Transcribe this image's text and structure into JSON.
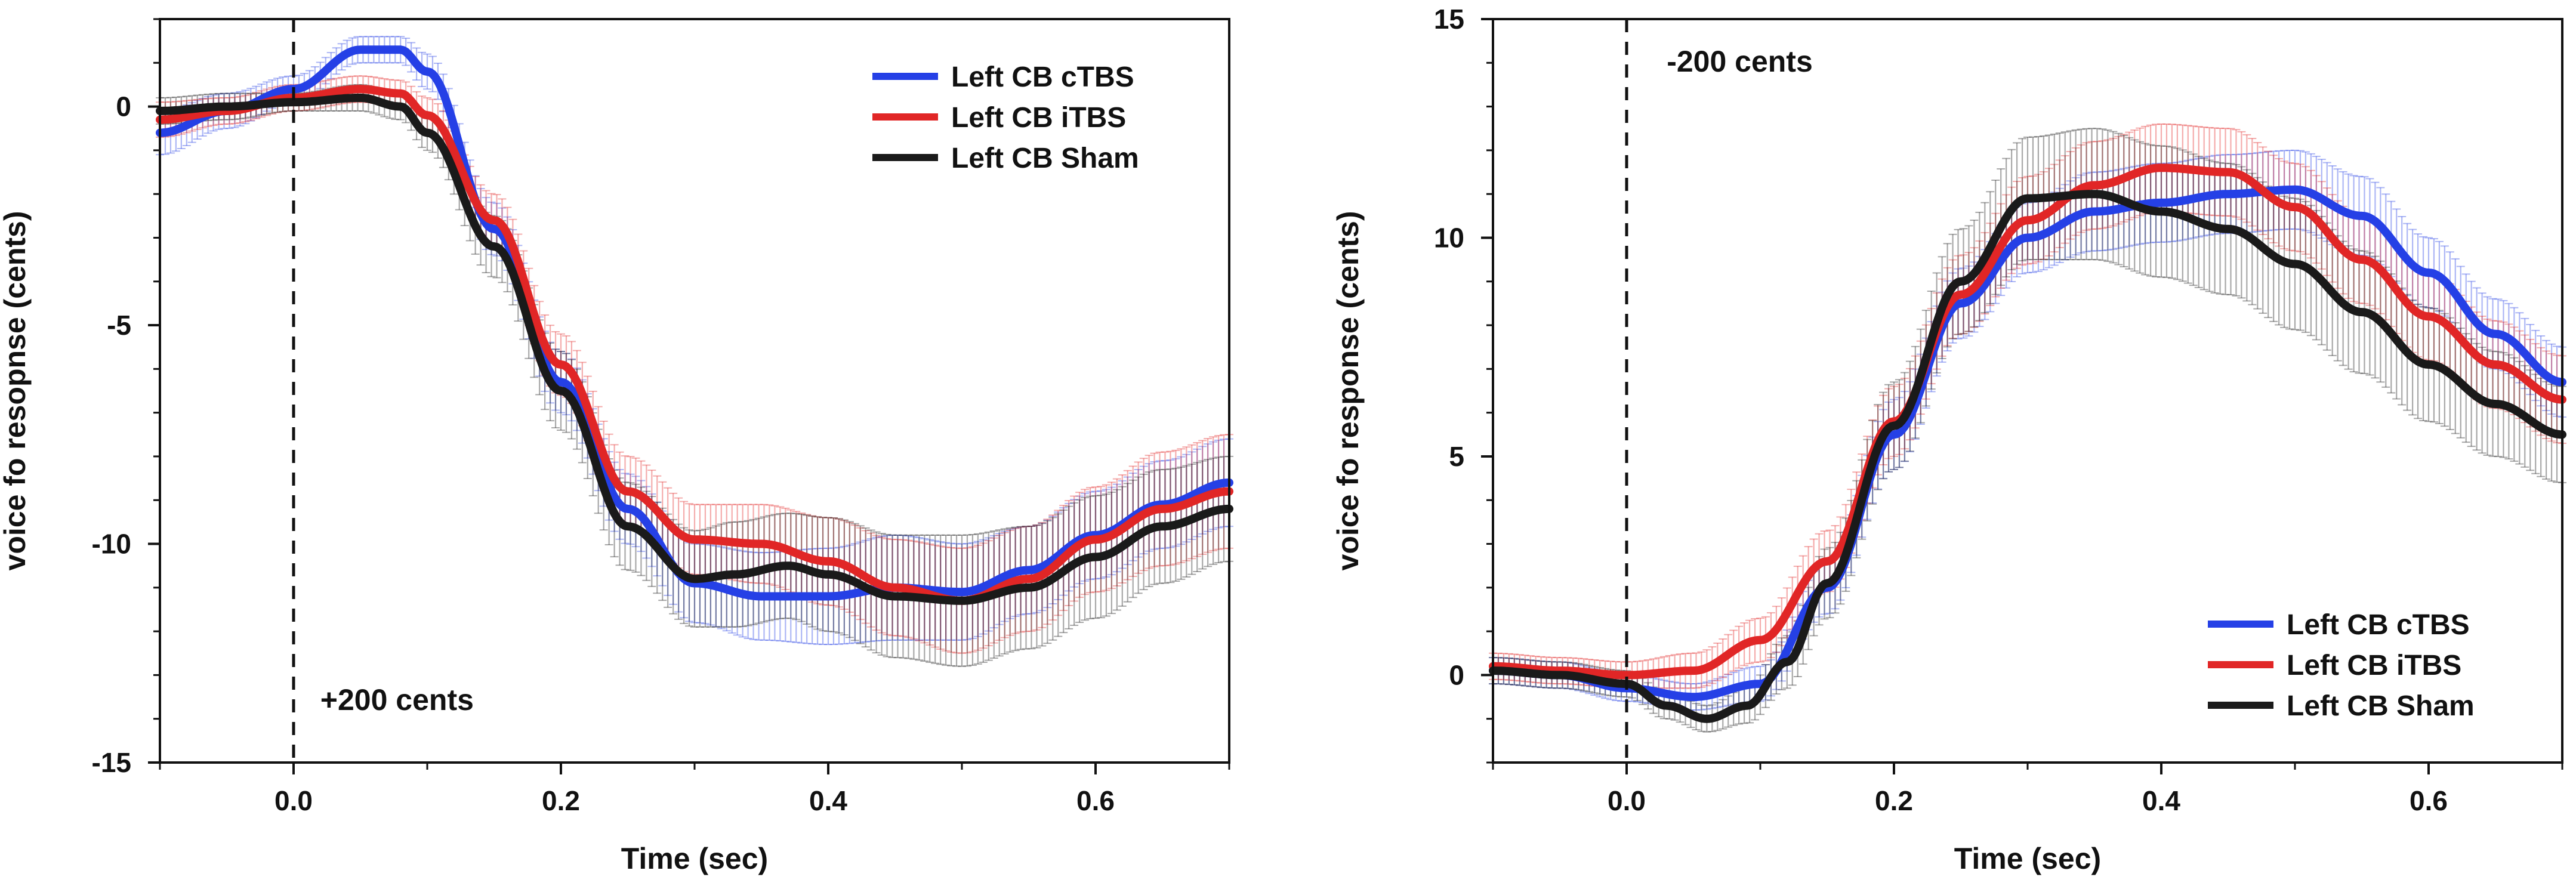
{
  "chart_data": [
    {
      "type": "line",
      "id": "left",
      "xlabel": "Time (sec)",
      "ylabel": "voice fo resopnse (cents)",
      "xlim": [
        -0.1,
        0.7
      ],
      "ylim": [
        -15,
        2
      ],
      "xticks": [
        0.0,
        0.2,
        0.4,
        0.6
      ],
      "xtick_labels": [
        "0.0",
        "0.2",
        "0.4",
        "0.6"
      ],
      "yticks": [
        0,
        -5,
        -10,
        -15
      ],
      "ytick_labels": [
        "0",
        "-5",
        "-10",
        "-15"
      ],
      "annotation": "+200 cents",
      "annotation_pos": [
        0.02,
        -13.8
      ],
      "vline_x": 0,
      "legend_position": "top-right",
      "series": [
        {
          "name": "Left CB cTBS",
          "color": "#2540e6",
          "x": [
            -0.1,
            -0.05,
            0.0,
            0.05,
            0.08,
            0.1,
            0.15,
            0.2,
            0.25,
            0.3,
            0.35,
            0.4,
            0.45,
            0.5,
            0.55,
            0.6,
            0.65,
            0.7
          ],
          "y": [
            -0.6,
            -0.1,
            0.4,
            1.3,
            1.3,
            0.8,
            -2.8,
            -6.3,
            -9.2,
            -10.9,
            -11.2,
            -11.2,
            -11.0,
            -11.1,
            -10.6,
            -9.8,
            -9.1,
            -8.6
          ],
          "err": [
            0.5,
            0.4,
            0.3,
            0.3,
            0.3,
            0.4,
            0.6,
            0.7,
            0.8,
            0.9,
            1.0,
            1.1,
            1.2,
            1.1,
            1.0,
            1.0,
            1.0,
            1.0
          ]
        },
        {
          "name": "Left CB iTBS",
          "color": "#e12626",
          "x": [
            -0.1,
            -0.05,
            0.0,
            0.05,
            0.08,
            0.1,
            0.15,
            0.2,
            0.25,
            0.3,
            0.35,
            0.4,
            0.45,
            0.5,
            0.55,
            0.6,
            0.65,
            0.7
          ],
          "y": [
            -0.3,
            -0.1,
            0.2,
            0.4,
            0.3,
            -0.2,
            -2.6,
            -5.9,
            -8.8,
            -9.9,
            -10.0,
            -10.4,
            -11.0,
            -11.3,
            -10.8,
            -9.9,
            -9.2,
            -8.8
          ],
          "err": [
            0.4,
            0.3,
            0.3,
            0.3,
            0.3,
            0.4,
            0.6,
            0.7,
            0.8,
            0.8,
            0.9,
            1.0,
            1.1,
            1.2,
            1.2,
            1.2,
            1.3,
            1.3
          ]
        },
        {
          "name": "Left CB Sham",
          "color": "#1a1a1a",
          "x": [
            -0.1,
            -0.05,
            0.0,
            0.05,
            0.08,
            0.1,
            0.15,
            0.2,
            0.25,
            0.3,
            0.33,
            0.37,
            0.4,
            0.45,
            0.5,
            0.55,
            0.6,
            0.65,
            0.7
          ],
          "y": [
            -0.1,
            0.0,
            0.1,
            0.2,
            0.0,
            -0.6,
            -3.2,
            -6.5,
            -9.6,
            -10.8,
            -10.7,
            -10.5,
            -10.7,
            -11.2,
            -11.3,
            -11.0,
            -10.3,
            -9.6,
            -9.2
          ],
          "err": [
            0.3,
            0.3,
            0.2,
            0.3,
            0.3,
            0.4,
            0.7,
            0.9,
            1.0,
            1.1,
            1.2,
            1.2,
            1.3,
            1.4,
            1.5,
            1.4,
            1.4,
            1.3,
            1.2
          ]
        }
      ]
    },
    {
      "type": "line",
      "id": "right",
      "xlabel": "Time (sec)",
      "ylabel": "voice fo response (cents)",
      "xlim": [
        -0.1,
        0.7
      ],
      "ylim": [
        -2,
        15
      ],
      "xticks": [
        0.0,
        0.2,
        0.4,
        0.6
      ],
      "xtick_labels": [
        "0.0",
        "0.2",
        "0.4",
        "0.6"
      ],
      "yticks": [
        0,
        5,
        10,
        15
      ],
      "ytick_labels": [
        "0",
        "5",
        "10",
        "15"
      ],
      "annotation": "-200 cents",
      "annotation_pos": [
        0.03,
        13.8
      ],
      "vline_x": 0,
      "legend_position": "bottom-right",
      "series": [
        {
          "name": "Left CB cTBS",
          "color": "#2540e6",
          "x": [
            -0.1,
            -0.05,
            0.0,
            0.05,
            0.1,
            0.15,
            0.2,
            0.25,
            0.3,
            0.35,
            0.4,
            0.45,
            0.5,
            0.55,
            0.6,
            0.65,
            0.7
          ],
          "y": [
            0.1,
            0.0,
            -0.3,
            -0.5,
            -0.2,
            2.0,
            5.5,
            8.5,
            10.0,
            10.6,
            10.8,
            11.0,
            11.1,
            10.5,
            9.2,
            7.8,
            6.7
          ],
          "err": [
            0.3,
            0.3,
            0.3,
            0.3,
            0.4,
            0.6,
            0.8,
            0.8,
            0.8,
            0.9,
            0.9,
            0.9,
            0.9,
            0.9,
            0.8,
            0.8,
            0.8
          ]
        },
        {
          "name": "Left CB iTBS",
          "color": "#e12626",
          "x": [
            -0.1,
            -0.05,
            0.0,
            0.05,
            0.1,
            0.15,
            0.2,
            0.25,
            0.3,
            0.35,
            0.4,
            0.45,
            0.5,
            0.55,
            0.6,
            0.65,
            0.7
          ],
          "y": [
            0.2,
            0.1,
            0.0,
            0.1,
            0.8,
            2.6,
            5.8,
            8.7,
            10.4,
            11.2,
            11.6,
            11.5,
            10.7,
            9.5,
            8.2,
            7.1,
            6.3
          ],
          "err": [
            0.3,
            0.3,
            0.3,
            0.4,
            0.5,
            0.7,
            0.8,
            0.9,
            1.0,
            1.0,
            1.0,
            1.0,
            1.0,
            1.0,
            1.0,
            1.0,
            1.0
          ]
        },
        {
          "name": "Left CB Sham",
          "color": "#1a1a1a",
          "x": [
            -0.1,
            -0.05,
            0.0,
            0.03,
            0.06,
            0.09,
            0.12,
            0.15,
            0.2,
            0.25,
            0.3,
            0.35,
            0.4,
            0.45,
            0.5,
            0.55,
            0.6,
            0.65,
            0.7
          ],
          "y": [
            0.1,
            0.0,
            -0.2,
            -0.7,
            -1.0,
            -0.7,
            0.3,
            2.1,
            5.7,
            9.0,
            10.9,
            11.0,
            10.6,
            10.2,
            9.4,
            8.3,
            7.1,
            6.2,
            5.5
          ],
          "err": [
            0.3,
            0.3,
            0.3,
            0.3,
            0.3,
            0.4,
            0.6,
            0.8,
            1.0,
            1.2,
            1.4,
            1.5,
            1.5,
            1.5,
            1.5,
            1.4,
            1.3,
            1.2,
            1.1
          ]
        }
      ]
    }
  ]
}
